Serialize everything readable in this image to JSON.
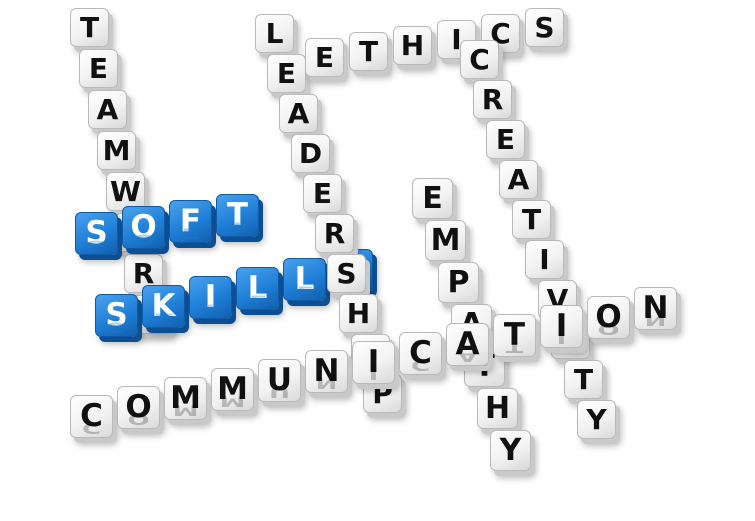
{
  "words": [
    {
      "name": "word-teamwork",
      "text": "TEAMWORK",
      "color": "white"
    },
    {
      "name": "word-soft",
      "text": "SOFT",
      "color": "blue"
    },
    {
      "name": "word-skills",
      "text": "SKILLS",
      "color": "blue"
    },
    {
      "name": "word-leadership",
      "text": "LEADERSHIP",
      "color": "white"
    },
    {
      "name": "word-ethics",
      "text": "ETHICS",
      "color": "white"
    },
    {
      "name": "word-creativity",
      "text": "CREATIVITY",
      "color": "white"
    },
    {
      "name": "word-empathy",
      "text": "EMPATHY",
      "color": "white"
    },
    {
      "name": "word-communication",
      "text": "COMMUNICATION",
      "color": "white"
    }
  ],
  "colors": {
    "blue_cube": "#1f7fd6",
    "white_cube": "#f2f2f2",
    "letter_dark": "#111111",
    "background": "#ffffff"
  }
}
